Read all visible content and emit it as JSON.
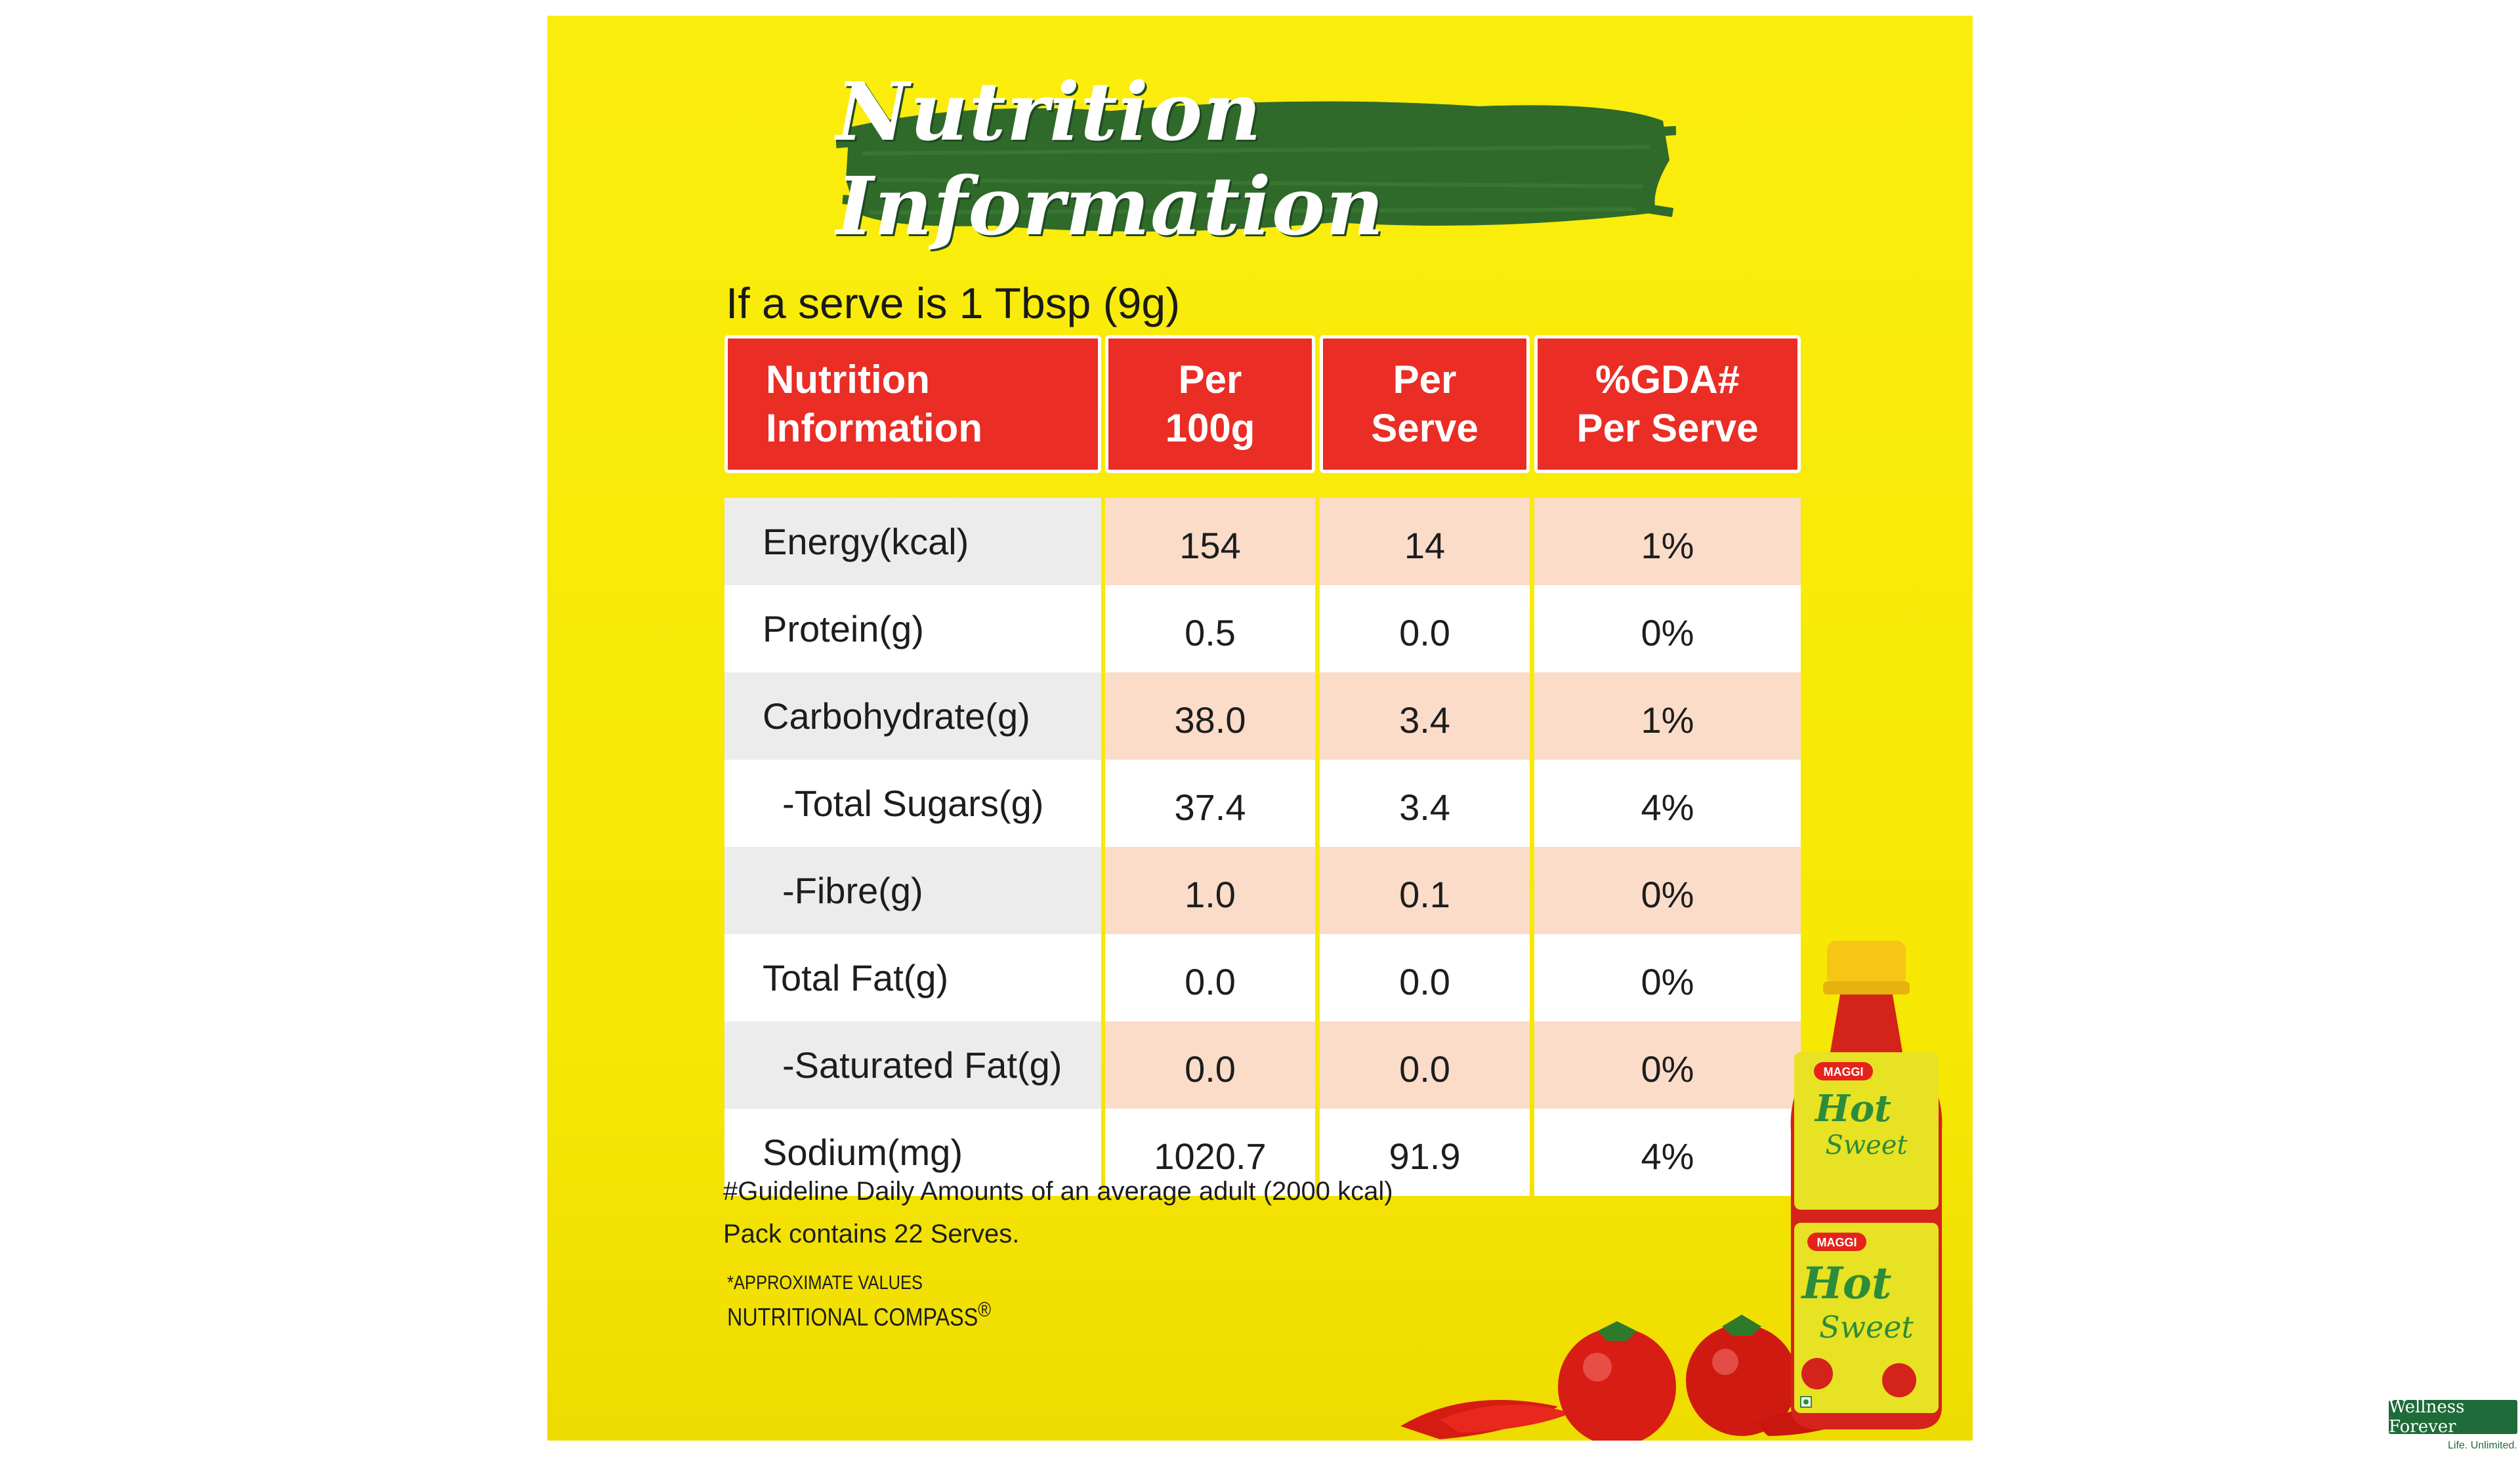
{
  "title": "Nutrition Information",
  "serve_text": "If a serve is 1 Tbsp (9g)",
  "table": {
    "headers": {
      "col1_line1": "Nutrition",
      "col1_line2": "Information",
      "col2_line1": "Per",
      "col2_line2": "100g",
      "col3_line1": "Per",
      "col3_line2": "Serve",
      "col4_line1": "%GDA#",
      "col4_line2": "Per Serve"
    },
    "rows": [
      {
        "label": "Energy(kcal)",
        "per100g": "154",
        "perServe": "14",
        "gda": "1%"
      },
      {
        "label": "Protein(g)",
        "per100g": "0.5",
        "perServe": "0.0",
        "gda": "0%"
      },
      {
        "label": "Carbohydrate(g)",
        "per100g": "38.0",
        "perServe": "3.4",
        "gda": "1%"
      },
      {
        "label": "-Total Sugars(g)",
        "per100g": "37.4",
        "perServe": "3.4",
        "gda": "4%"
      },
      {
        "label": "-Fibre(g)",
        "per100g": "1.0",
        "perServe": "0.1",
        "gda": "0%"
      },
      {
        "label": "Total Fat(g)",
        "per100g": "0.0",
        "perServe": "0.0",
        "gda": "0%"
      },
      {
        "label": "-Saturated Fat(g)",
        "per100g": "0.0",
        "perServe": "0.0",
        "gda": "0%"
      },
      {
        "label": "Sodium(mg)",
        "per100g": "1020.7",
        "perServe": "91.9",
        "gda": "4%"
      }
    ]
  },
  "footnotes": {
    "gda": "#Guideline Daily Amounts of an average adult (2000 kcal)",
    "pack": "Pack contains 22 Serves.",
    "approx": "*APPROXIMATE VALUES",
    "compass": "NUTRITIONAL COMPASS",
    "registered": "®"
  },
  "product_label": {
    "brand": "MAGGI",
    "name_line1": "Hot",
    "name_line2": "Sweet"
  },
  "watermark": {
    "name": "Wellness Forever",
    "tagline": "Life. Unlimited."
  },
  "colors": {
    "background": "#fbed0d",
    "header_red": "#ea2d25",
    "brush_green": "#2f6a2a",
    "row_peach": "#fbdcc9",
    "row_grey": "#ececec"
  }
}
